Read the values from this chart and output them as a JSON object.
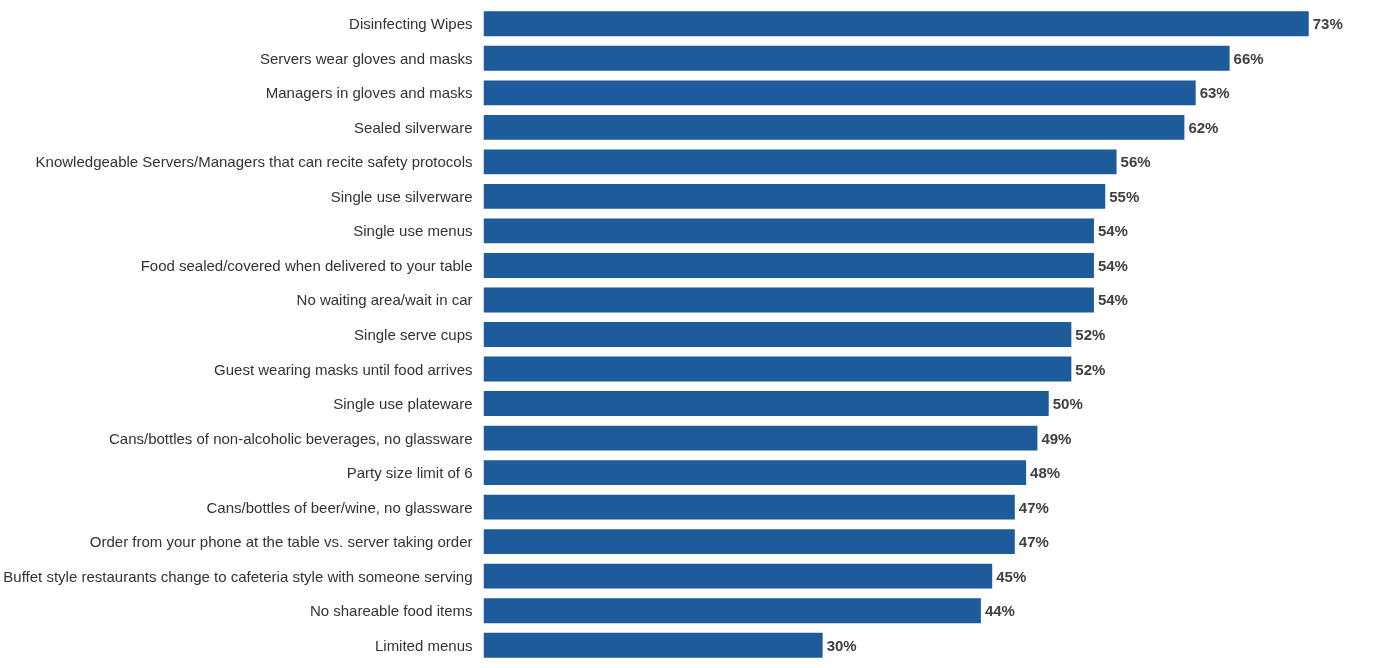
{
  "chart_data": {
    "type": "bar",
    "orientation": "horizontal",
    "data_labels": true,
    "grid": false,
    "tick_labels": "y",
    "categories": [
      "Disinfecting Wipes",
      "Servers wear gloves and masks",
      "Managers in gloves and masks",
      "Sealed silverware",
      "Knowledgeable Servers/Managers that can recite safety protocols",
      "Single use silverware",
      "Single use menus",
      "Food sealed/covered when delivered to your table",
      "No waiting area/wait in car",
      "Single serve cups",
      "Guest wearing masks until food arrives",
      "Single use plateware",
      "Cans/bottles of non-alcoholic beverages, no glassware",
      "Party size limit of 6",
      "Cans/bottles of beer/wine, no glassware",
      "Order from your phone at the table vs. server taking order",
      "Buffet style restaurants change to cafeteria style with someone serving",
      "No shareable food items",
      "Limited menus"
    ],
    "values": [
      73,
      66,
      63,
      62,
      56,
      55,
      54,
      54,
      54,
      52,
      52,
      50,
      49,
      48,
      47,
      47,
      45,
      44,
      30
    ],
    "value_labels": [
      "73%",
      "66%",
      "63%",
      "62%",
      "56%",
      "55%",
      "54%",
      "54%",
      "54%",
      "52%",
      "52%",
      "50%",
      "49%",
      "48%",
      "47%",
      "47%",
      "45%",
      "44%",
      "30%"
    ],
    "color": "#1d5b9a"
  }
}
